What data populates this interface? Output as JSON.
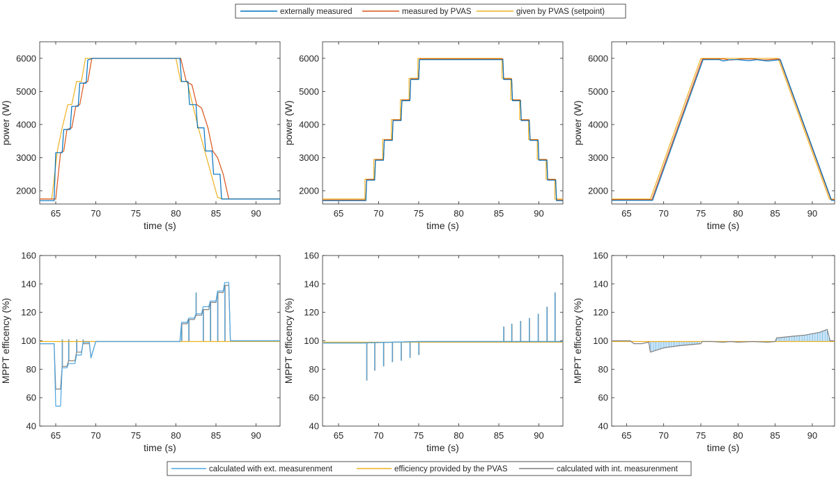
{
  "legend_top": {
    "entries": [
      {
        "label": "externally measured",
        "color": "#0072BD"
      },
      {
        "label": "measured by PVAS",
        "color": "#D95319"
      },
      {
        "label": "given by PVAS (setpoint)",
        "color": "#EDB120"
      }
    ]
  },
  "legend_bottom": {
    "entries": [
      {
        "label": "calculated with ext. measurenment",
        "color": "#4DA6E0"
      },
      {
        "label": "efficiency provided by the PVAS",
        "color": "#EDB120"
      },
      {
        "label": "calculated with int. measurenment",
        "color": "#7F7F7F"
      }
    ]
  },
  "chart_data": [
    {
      "type": "line",
      "xlabel": "time (s)",
      "ylabel": "power (W)",
      "xlim": [
        63,
        93
      ],
      "ylim": [
        1600,
        6500
      ],
      "xticks": [
        65,
        70,
        75,
        80,
        85,
        90
      ],
      "yticks": [
        2000,
        3000,
        4000,
        5000,
        6000
      ],
      "series": [
        {
          "name": "given by PVAS (setpoint)",
          "color": "#EDB120",
          "x": [
            63,
            64.5,
            65.2,
            65.8,
            66.5,
            67.0,
            67.6,
            68.2,
            68.7,
            80.0,
            80.6,
            81.4,
            82.1,
            82.8,
            83.6,
            84.4,
            85.2,
            85.9,
            93
          ],
          "y": [
            1750,
            1750,
            3200,
            3900,
            4600,
            4600,
            5300,
            5300,
            6000,
            6000,
            5300,
            5300,
            4600,
            3900,
            3200,
            2500,
            1800,
            1750,
            1750
          ]
        },
        {
          "name": "measured by PVAS",
          "color": "#D95319",
          "x": [
            63,
            65.0,
            65.6,
            66.0,
            66.4,
            67.0,
            67.5,
            68.0,
            68.5,
            69.0,
            69.5,
            80.6,
            81.3,
            82.0,
            82.6,
            83.2,
            84.0,
            84.6,
            85.2,
            85.9,
            86.6,
            93
          ],
          "y": [
            1750,
            1750,
            3150,
            3200,
            3850,
            3900,
            4550,
            4600,
            5250,
            5300,
            6000,
            6000,
            5300,
            5200,
            4600,
            4500,
            3900,
            3200,
            3000,
            2500,
            1750,
            1750
          ]
        },
        {
          "name": "externally measured",
          "color": "#0072BD",
          "x": [
            63,
            64.8,
            65.0,
            65.8,
            66.0,
            66.8,
            67.0,
            67.8,
            68.0,
            68.8,
            69.0,
            69.6,
            80.5,
            80.7,
            81.5,
            81.7,
            82.5,
            82.7,
            83.5,
            83.7,
            84.5,
            84.7,
            85.5,
            85.7,
            86.3,
            93
          ],
          "y": [
            1700,
            1700,
            3150,
            3150,
            3850,
            3850,
            4550,
            4550,
            5250,
            5250,
            5950,
            6000,
            6000,
            5300,
            5300,
            4600,
            4600,
            3900,
            3900,
            3200,
            3200,
            2500,
            2500,
            1750,
            1750,
            1750
          ]
        }
      ]
    },
    {
      "type": "line",
      "xlabel": "time (s)",
      "ylabel": "power (W)",
      "xlim": [
        63,
        93
      ],
      "ylim": [
        1600,
        6500
      ],
      "xticks": [
        65,
        70,
        75,
        80,
        85,
        90
      ],
      "yticks": [
        2000,
        3000,
        4000,
        5000,
        6000
      ],
      "series": [
        {
          "name": "given by PVAS (setpoint)",
          "color": "#EDB120",
          "x": [
            63,
            68.3,
            68.3,
            69.4,
            69.4,
            70.5,
            70.5,
            71.6,
            71.6,
            72.7,
            72.7,
            73.8,
            73.8,
            74.9,
            74.9,
            85.4,
            85.4,
            86.5,
            86.5,
            87.6,
            87.6,
            88.7,
            88.7,
            89.8,
            89.8,
            90.9,
            90.9,
            92.0,
            92.0,
            93
          ],
          "y": [
            1750,
            1750,
            2350,
            2350,
            2950,
            2950,
            3550,
            3550,
            4150,
            4150,
            4750,
            4750,
            5400,
            5400,
            6000,
            6000,
            5400,
            5400,
            4750,
            4750,
            4150,
            4150,
            3550,
            3550,
            2950,
            2950,
            2350,
            2350,
            1750,
            1750
          ]
        },
        {
          "name": "measured by PVAS",
          "color": "#D95319",
          "x": [
            63,
            68.4,
            68.5,
            69.5,
            69.6,
            70.6,
            70.7,
            71.7,
            71.8,
            72.8,
            72.9,
            73.9,
            74.0,
            75.0,
            75.1,
            85.5,
            85.6,
            86.6,
            86.7,
            87.7,
            87.8,
            88.8,
            88.9,
            89.9,
            90.0,
            91.0,
            91.1,
            92.1,
            92.2,
            93
          ],
          "y": [
            1720,
            1720,
            2340,
            2340,
            2940,
            2940,
            3540,
            3540,
            4140,
            4140,
            4740,
            4740,
            5380,
            5380,
            5980,
            5980,
            5380,
            5380,
            4740,
            4740,
            4140,
            4140,
            3540,
            3540,
            2940,
            2940,
            2340,
            2340,
            1720,
            1720
          ]
        },
        {
          "name": "externally measured",
          "color": "#0072BD",
          "x": [
            63,
            68.4,
            68.5,
            69.5,
            69.6,
            70.6,
            70.7,
            71.7,
            71.8,
            72.8,
            72.9,
            73.9,
            74.0,
            75.0,
            75.1,
            85.5,
            85.6,
            86.6,
            86.7,
            87.7,
            87.8,
            88.8,
            88.9,
            89.9,
            90.0,
            91.0,
            91.1,
            92.1,
            92.2,
            93
          ],
          "y": [
            1700,
            1700,
            2320,
            2320,
            2920,
            2920,
            3520,
            3520,
            4120,
            4120,
            4720,
            4720,
            5360,
            5360,
            5960,
            5960,
            5360,
            5360,
            4720,
            4720,
            4120,
            4120,
            3520,
            3520,
            2920,
            2920,
            2320,
            2320,
            1700,
            1700
          ]
        }
      ]
    },
    {
      "type": "line",
      "xlabel": "time (s)",
      "ylabel": "power (W)",
      "xlim": [
        63,
        93
      ],
      "ylim": [
        1600,
        6500
      ],
      "xticks": [
        65,
        70,
        75,
        80,
        85,
        90
      ],
      "yticks": [
        2000,
        3000,
        4000,
        5000,
        6000
      ],
      "series": [
        {
          "name": "given by PVAS (setpoint)",
          "color": "#EDB120",
          "x": [
            63,
            68.2,
            75.0,
            85.4,
            92.3,
            93
          ],
          "y": [
            1750,
            1750,
            6000,
            6000,
            1750,
            1750
          ]
        },
        {
          "name": "measured by PVAS",
          "color": "#D95319",
          "x": [
            63,
            68.4,
            75.2,
            78.0,
            79.0,
            80.5,
            82.0,
            83.5,
            85.6,
            92.5,
            93
          ],
          "y": [
            1730,
            1730,
            5980,
            5980,
            5950,
            5980,
            5980,
            5950,
            5980,
            1730,
            1730
          ]
        },
        {
          "name": "externally measured",
          "color": "#0072BD",
          "x": [
            63,
            68.5,
            75.3,
            77.5,
            78.0,
            79.0,
            80.0,
            81.5,
            82.5,
            84.0,
            85.7,
            92.6,
            93
          ],
          "y": [
            1710,
            1710,
            5960,
            5960,
            5920,
            5960,
            5960,
            5930,
            5960,
            5920,
            5960,
            1710,
            1710
          ]
        }
      ]
    },
    {
      "type": "line",
      "xlabel": "time (s)",
      "ylabel": "MPPT efficency (%)",
      "xlim": [
        63,
        93
      ],
      "ylim": [
        40,
        160
      ],
      "xticks": [
        65,
        70,
        75,
        80,
        85,
        90
      ],
      "yticks": [
        40,
        60,
        80,
        100,
        120,
        140,
        160
      ],
      "series": [
        {
          "name": "efficiency provided by the PVAS",
          "color": "#EDB120",
          "x": [
            63,
            93
          ],
          "y": [
            99.5,
            99.5
          ]
        },
        {
          "name": "calculated with int. measurenment",
          "color": "#7F7F7F",
          "x": [
            63,
            64.8,
            65.0,
            65.6,
            65.8,
            66.4,
            66.6,
            67.4,
            67.6,
            68.2,
            68.4,
            69.2,
            69.4,
            70.0,
            80.5,
            80.7,
            81.4,
            81.6,
            82.3,
            82.5,
            83.2,
            83.4,
            84.1,
            84.3,
            85.0,
            85.2,
            85.9,
            86.1,
            86.6,
            86.8,
            93
          ],
          "y": [
            98,
            98,
            66,
            66,
            82,
            82,
            86,
            86,
            92,
            92,
            98,
            98,
            88,
            99.5,
            99.5,
            112,
            112,
            115,
            115,
            118,
            118,
            122,
            122,
            127,
            127,
            134,
            134,
            139,
            139,
            100,
            100
          ]
        },
        {
          "name": "calculated with ext. measurenment",
          "color": "#4DA6E0",
          "x": [
            63,
            64.8,
            65.0,
            65.6,
            65.8,
            66.4,
            66.6,
            67.4,
            67.6,
            68.2,
            68.4,
            69.2,
            69.4,
            70.0,
            80.5,
            80.7,
            81.4,
            81.6,
            82.3,
            82.5,
            83.2,
            83.4,
            84.1,
            84.3,
            85.0,
            85.2,
            85.9,
            86.1,
            86.6,
            86.8,
            93
          ],
          "y": [
            98,
            98,
            54,
            54,
            81,
            81,
            84,
            84,
            90,
            90,
            99,
            99,
            88,
            99.5,
            99.5,
            113,
            113,
            116,
            116,
            119,
            119,
            124,
            124,
            128,
            128,
            135,
            135,
            141,
            141,
            100,
            100
          ]
        }
      ],
      "spikes": [
        {
          "series": "calculated with ext. measurenment",
          "x": [
            65.8,
            66.6,
            67.6,
            68.4,
            80.7,
            81.6,
            82.5,
            83.4,
            84.3,
            85.2,
            86.1
          ],
          "y": [
            101,
            101,
            101,
            101,
            99.5,
            99.5,
            134,
            99.5,
            99.5,
            99.5,
            99.5
          ]
        }
      ]
    },
    {
      "type": "line",
      "xlabel": "time (s)",
      "ylabel": "MPPT efficency (%)",
      "xlim": [
        63,
        93
      ],
      "ylim": [
        40,
        160
      ],
      "xticks": [
        65,
        70,
        75,
        80,
        85,
        90
      ],
      "yticks": [
        40,
        60,
        80,
        100,
        120,
        140,
        160
      ],
      "series": [
        {
          "name": "efficiency provided by the PVAS",
          "color": "#EDB120",
          "x": [
            63,
            93
          ],
          "y": [
            99,
            99
          ]
        },
        {
          "name": "calculated with int. measurenment",
          "color": "#7F7F7F",
          "x": [
            63,
            68.0,
            75.0,
            85.0,
            93
          ],
          "y": [
            98.5,
            98.5,
            99.5,
            99.5,
            99.5
          ]
        },
        {
          "name": "calculated with ext. measurenment",
          "color": "#4DA6E0",
          "x": [
            63,
            68.0,
            75.0,
            85.0,
            93
          ],
          "y": [
            98.5,
            98.5,
            99.5,
            99.5,
            99.5
          ]
        }
      ],
      "spikes": [
        {
          "series": "calculated with ext. measurenment",
          "x": [
            68.5,
            69.5,
            70.6,
            71.7,
            72.8,
            73.9,
            75.0,
            85.6,
            86.6,
            87.7,
            88.8,
            89.9,
            91.0,
            92.0
          ],
          "y": [
            72,
            79,
            82,
            85,
            86,
            88,
            90,
            110,
            112,
            114,
            116,
            119,
            124,
            134
          ]
        }
      ]
    },
    {
      "type": "line",
      "xlabel": "time (s)",
      "ylabel": "MPPT efficency (%)",
      "xlim": [
        63,
        93
      ],
      "ylim": [
        40,
        160
      ],
      "xticks": [
        65,
        70,
        75,
        80,
        85,
        90
      ],
      "yticks": [
        40,
        60,
        80,
        100,
        120,
        140,
        160
      ],
      "series": [
        {
          "name": "efficiency provided by the PVAS",
          "color": "#EDB120",
          "x": [
            63,
            93
          ],
          "y": [
            99.5,
            99.5
          ]
        },
        {
          "name": "calculated with int. measurenment",
          "color": "#7F7F7F",
          "x": [
            63,
            65.5,
            66.0,
            67.0,
            68.0,
            68.2,
            70.0,
            72.0,
            74.0,
            75.0,
            75.2,
            76.5,
            78.0,
            79.0,
            80.0,
            82.0,
            84.0,
            85.0,
            85.2,
            87.0,
            89.0,
            91.0,
            92.0,
            92.4,
            93
          ],
          "y": [
            100,
            100,
            98,
            98,
            99,
            92,
            95,
            96.5,
            97.5,
            98,
            99.5,
            99.5,
            99,
            99.5,
            99,
            99.5,
            99,
            99.5,
            102,
            103,
            104,
            106,
            108,
            100,
            100
          ]
        }
      ],
      "fill_bands": [
        {
          "series": "calculated with ext. measurenment",
          "x0": 68.2,
          "x1": 75.0,
          "direction": "below"
        },
        {
          "series": "calculated with ext. measurenment",
          "x0": 85.2,
          "x1": 92.3,
          "direction": "above"
        }
      ]
    }
  ]
}
